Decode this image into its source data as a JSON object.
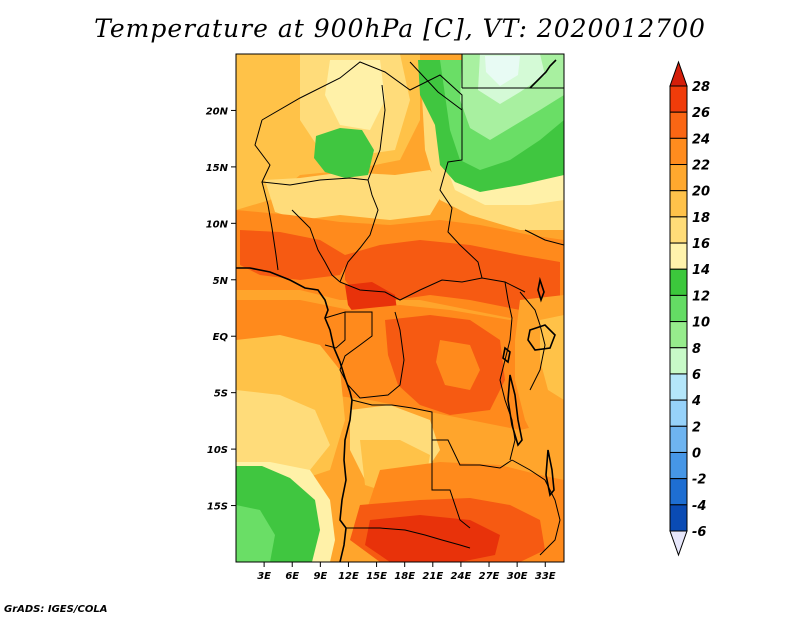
{
  "title": "Temperature at 900hPa [C], VT: 2020012700",
  "credit": "GrADS: IGES/COLA",
  "map": {
    "lon_range": [
      0,
      35
    ],
    "lat_range": [
      -20,
      25
    ],
    "lon_ticks": [
      3,
      6,
      9,
      12,
      15,
      18,
      21,
      24,
      27,
      30,
      33
    ],
    "lon_tick_labels": [
      "3E",
      "6E",
      "9E",
      "12E",
      "15E",
      "18E",
      "21E",
      "24E",
      "27E",
      "30E",
      "33E"
    ],
    "lat_ticks": [
      20,
      15,
      10,
      5,
      0,
      -5,
      -10,
      -15
    ],
    "lat_tick_labels": [
      "20N",
      "15N",
      "10N",
      "5N",
      "EQ",
      "5S",
      "10S",
      "15S"
    ]
  },
  "colorbar": {
    "levels": [
      "28",
      "26",
      "24",
      "22",
      "20",
      "18",
      "16",
      "14",
      "12",
      "10",
      "8",
      "6",
      "4",
      "2",
      "0",
      "-2",
      "-4",
      "-6"
    ],
    "colors": [
      "#f03c0a",
      "#fa6614",
      "#ff8c1e",
      "#ffa82e",
      "#ffc24a",
      "#ffdc78",
      "#fff3ac",
      "#3cc83c",
      "#64dc64",
      "#96ec8c",
      "#c8fac8",
      "#b4e6fa",
      "#96d2fa",
      "#6eb4f0",
      "#4696e6",
      "#1e6ed2",
      "#0a4bb4",
      "#00198c",
      "#141060"
    ],
    "over_color": "#d41e0a",
    "under_color": "#e6e6fa"
  },
  "palette": {
    "t28": "#e8320a",
    "t26": "#f65a12",
    "t24": "#ff8a1c",
    "t22": "#ffa52c",
    "t20": "#ffc248",
    "t18": "#ffdc7a",
    "t16": "#fff1a8",
    "t14": "#40c640",
    "t12": "#6ade66",
    "t10": "#a8f0a0",
    "t8": "#d4fad6",
    "t6": "#e8fbf4"
  }
}
